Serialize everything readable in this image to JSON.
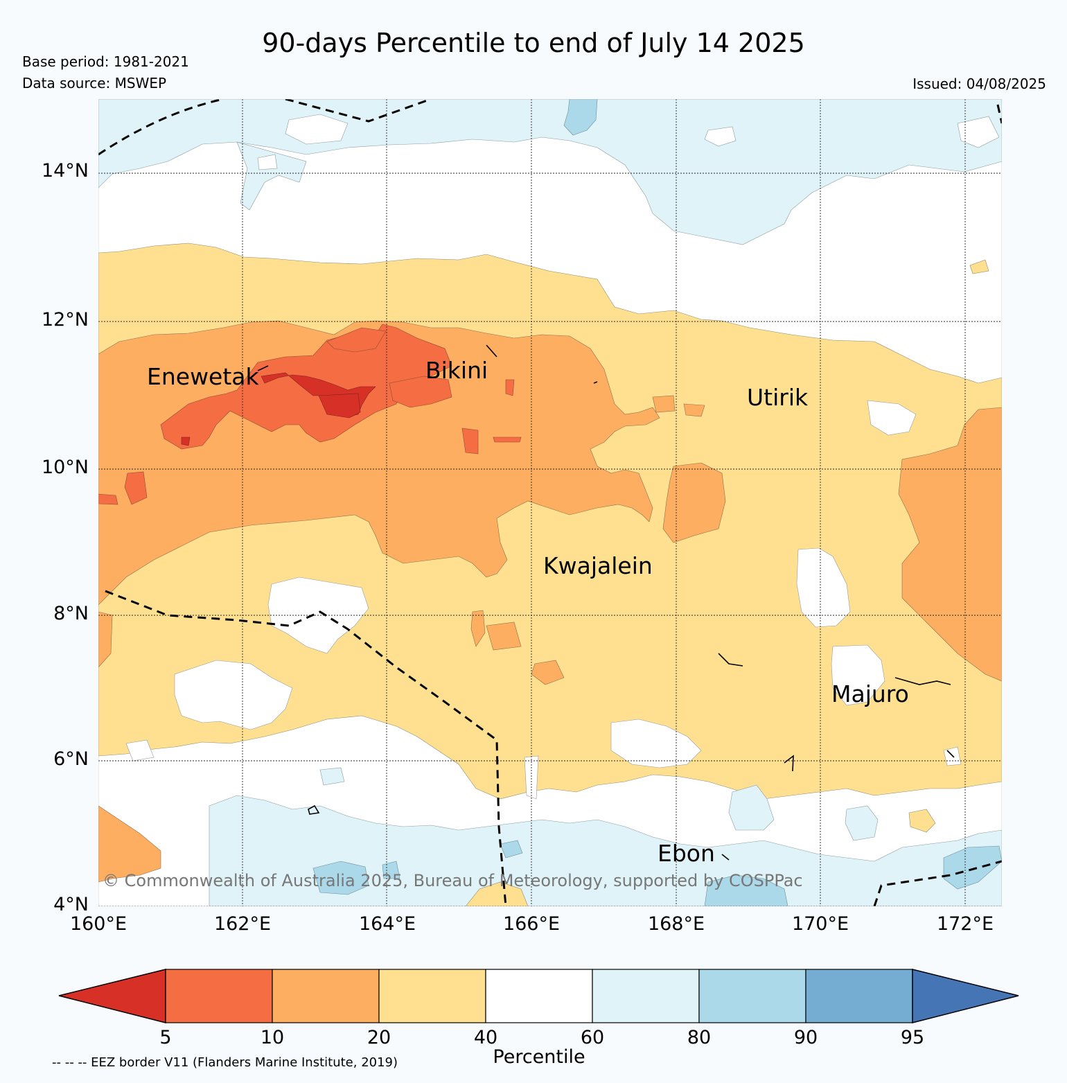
{
  "title": "90-days Percentile to end of July 14 2025",
  "base_period": "Base period: 1981-2021",
  "data_source": "Data source: MSWEP",
  "issued": "Issued: 04/08/2025",
  "lat_labels": [
    "14°N",
    "12°N",
    "10°N",
    "8°N",
    "6°N",
    "4°N"
  ],
  "lon_labels": [
    "160°E",
    "162°E",
    "164°E",
    "166°E",
    "168°E",
    "170°E",
    "172°E"
  ],
  "places": {
    "enewetak": "Enewetak",
    "bikini": "Bikini",
    "utirik": "Utirik",
    "kwajalein": "Kwajalein",
    "majuro": "Majuro",
    "ebon": "Ebon"
  },
  "copyright": "© Commonwealth of Australia 2025, Bureau of Meteorology, supported by COSPPac",
  "colorbar": {
    "ticks": [
      "5",
      "10",
      "20",
      "40",
      "60",
      "80",
      "90",
      "95"
    ],
    "label": "Percentile",
    "colors": [
      "#d73027",
      "#f46d43",
      "#fdae61",
      "#fee090",
      "#ffffff",
      "#e0f3f8",
      "#abd9e9",
      "#74add1",
      "#4575b4"
    ]
  },
  "eez_note": "-- -- -- EEZ border V11 (Flanders Marine Institute, 2019)"
}
